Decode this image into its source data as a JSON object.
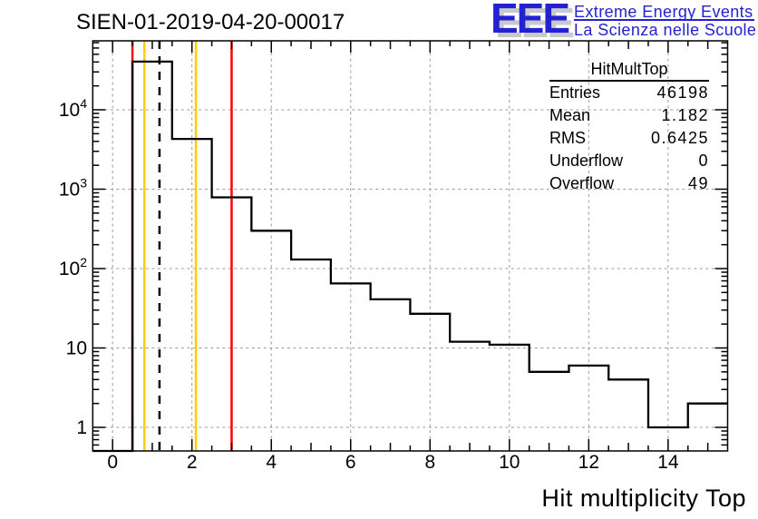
{
  "pad_title": "SIEN-01-2019-04-20-00017",
  "logo": {
    "acronym": "EEE",
    "line1": "Extreme Energy Events",
    "line2": "La Scienza nelle Scuole",
    "blue": "#2222d2",
    "shadow_gray": "#c9c9c9"
  },
  "stats": {
    "title": "HitMultTop",
    "rows": [
      {
        "label": "Entries",
        "value": "46198"
      },
      {
        "label": "Mean",
        "value": "1.182"
      },
      {
        "label": "RMS",
        "value": "0.6425"
      },
      {
        "label": "Underflow",
        "value": "0"
      },
      {
        "label": "Overflow",
        "value": "49"
      }
    ]
  },
  "chart_data": {
    "type": "bar",
    "subtype": "step-histogram",
    "title": "SIEN-01-2019-04-20-00017",
    "xlabel": "Hit multiplicity Top",
    "ylabel": "",
    "y_scale": "log",
    "grid": true,
    "xlim": [
      -0.5,
      15.5
    ],
    "ylim": [
      0.505,
      74000
    ],
    "bin_centers": [
      0,
      1,
      2,
      3,
      4,
      5,
      6,
      7,
      8,
      9,
      10,
      11,
      12,
      13,
      14,
      15
    ],
    "counts": [
      0,
      40450,
      4300,
      790,
      300,
      130,
      65,
      41,
      27,
      12,
      11,
      5,
      6,
      4,
      1,
      2
    ],
    "underflow": 0,
    "overflow": 49,
    "x_tick_labels": [
      0,
      2,
      4,
      6,
      8,
      10,
      12,
      14
    ],
    "y_tick_labels": [
      {
        "value": 1,
        "base": "1",
        "exp": ""
      },
      {
        "value": 10,
        "base": "10",
        "exp": ""
      },
      {
        "value": 100,
        "base": "10",
        "exp": "2"
      },
      {
        "value": 1000,
        "base": "10",
        "exp": "3"
      },
      {
        "value": 10000,
        "base": "10",
        "exp": "4"
      }
    ],
    "line_color": "#000000",
    "grid_color": "#9a9a9a",
    "marker_lines": [
      {
        "x": 0.5,
        "color": "#ff0000",
        "style": "solid",
        "name": "red-low-threshold"
      },
      {
        "x": 0.8,
        "color": "#ffcc00",
        "style": "solid",
        "name": "gold-low-threshold"
      },
      {
        "x": 1.182,
        "color": "#000000",
        "style": "dashed",
        "name": "mean-line"
      },
      {
        "x": 2.1,
        "color": "#ffcc00",
        "style": "solid",
        "name": "gold-high-threshold"
      },
      {
        "x": 3.0,
        "color": "#ff0000",
        "style": "solid",
        "name": "red-high-threshold"
      }
    ]
  }
}
